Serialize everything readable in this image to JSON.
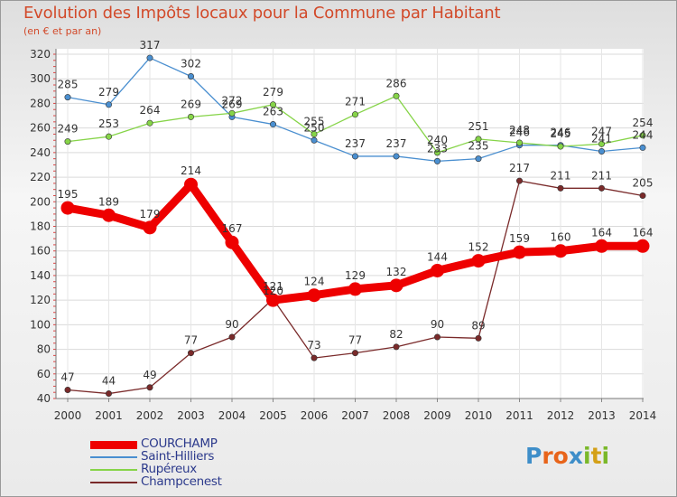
{
  "title": "Evolution des Impôts locaux pour la Commune par Habitant",
  "subtitle": "(en € et par an)",
  "logo": {
    "text": "Proxiti",
    "letter_colors": [
      "#3e8ec9",
      "#e8641a",
      "#e8641a",
      "#3e8ec9",
      "#7ab829",
      "#d4a017",
      "#7ab829"
    ]
  },
  "chart_data": {
    "type": "line",
    "title": "Evolution des Impôts locaux pour la Commune par Habitant",
    "subtitle": "(en € et par an)",
    "xlabel": "",
    "ylabel": "",
    "x": [
      "2000",
      "2001",
      "2002",
      "2003",
      "2004",
      "2005",
      "2006",
      "2007",
      "2008",
      "2009",
      "2010",
      "2011",
      "2012",
      "2013",
      "2014"
    ],
    "ylim": [
      40,
      320
    ],
    "yticks": [
      40,
      60,
      80,
      100,
      120,
      140,
      160,
      180,
      200,
      220,
      240,
      260,
      280,
      300,
      320
    ],
    "grid": true,
    "legend_position": "bottom-left",
    "series": [
      {
        "name": "COURCHAMP",
        "color": "#ee0000",
        "emphasis": true,
        "values": [
          195,
          189,
          179,
          214,
          167,
          120,
          124,
          129,
          132,
          144,
          152,
          159,
          160,
          164,
          164
        ]
      },
      {
        "name": "Saint-Hilliers",
        "color": "#4a8fd0",
        "emphasis": false,
        "values": [
          285,
          279,
          317,
          302,
          269,
          263,
          250,
          237,
          237,
          233,
          235,
          246,
          246,
          241,
          244
        ]
      },
      {
        "name": "Rupéreux",
        "color": "#86d448",
        "emphasis": false,
        "values": [
          249,
          253,
          264,
          269,
          272,
          279,
          255,
          271,
          286,
          240,
          251,
          248,
          245,
          247,
          254
        ]
      },
      {
        "name": "Champcenest",
        "color": "#7a2a2a",
        "emphasis": false,
        "values": [
          47,
          44,
          49,
          77,
          90,
          121,
          73,
          77,
          82,
          90,
          89,
          217,
          211,
          211,
          205
        ]
      }
    ]
  }
}
